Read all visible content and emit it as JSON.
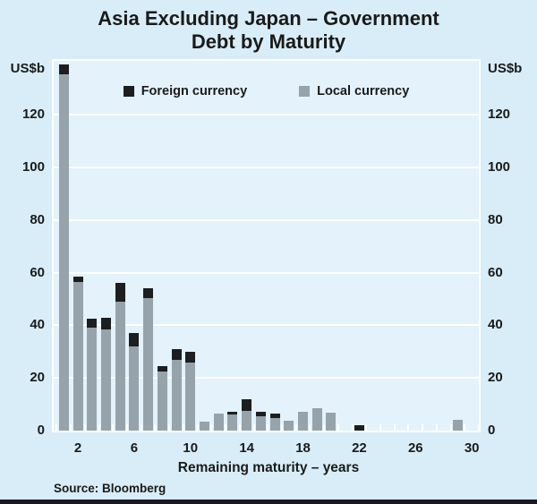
{
  "title": {
    "line1": "Asia Excluding Japan – Government",
    "line2": "Debt by Maturity"
  },
  "axis_unit_label": "US$b",
  "legend": {
    "foreign_label": "Foreign currency",
    "local_label": "Local currency"
  },
  "xaxis_title": "Remaining maturity – years",
  "source": "Source: Bloomberg",
  "colors": {
    "background": "#d8edf7",
    "plot_background": "#e3f2fb",
    "gridline": "#ffffff",
    "foreign_currency": "#1c1e20",
    "local_currency": "#97a3ab",
    "text": "#1a1a1a"
  },
  "chart_data": {
    "type": "bar",
    "stacked": true,
    "title": "Asia Excluding Japan – Government Debt by Maturity",
    "xlabel": "Remaining maturity – years",
    "ylabel": "US$b",
    "ylim": [
      0,
      141
    ],
    "yticks": [
      0,
      20,
      40,
      60,
      80,
      100,
      120
    ],
    "xticks": [
      2,
      6,
      10,
      14,
      18,
      22,
      26,
      30
    ],
    "grid": true,
    "legend_position": "top-center",
    "categories": [
      1,
      2,
      3,
      4,
      5,
      6,
      7,
      8,
      9,
      10,
      11,
      12,
      13,
      14,
      15,
      16,
      17,
      18,
      19,
      20,
      21,
      22,
      23,
      24,
      25,
      26,
      27,
      28,
      29,
      30
    ],
    "series": [
      {
        "name": "Foreign currency",
        "color": "#1c1e20",
        "values": [
          3.5,
          2,
          3.5,
          4.5,
          7,
          5,
          3.5,
          2,
          4,
          4,
          0,
          0,
          1,
          4.5,
          1.5,
          1.5,
          0,
          0,
          0,
          0,
          0,
          2,
          0,
          0,
          0,
          0,
          0,
          0,
          0,
          0
        ]
      },
      {
        "name": "Local currency",
        "color": "#97a3ab",
        "values": [
          135.5,
          56.5,
          39,
          38.5,
          49,
          32,
          50.5,
          22.5,
          27,
          26,
          3.5,
          6.5,
          6,
          7.5,
          5.5,
          4.8,
          3.8,
          7,
          8.5,
          6.8,
          0,
          0,
          0,
          0,
          0,
          0,
          0,
          0,
          4,
          0
        ]
      }
    ]
  }
}
